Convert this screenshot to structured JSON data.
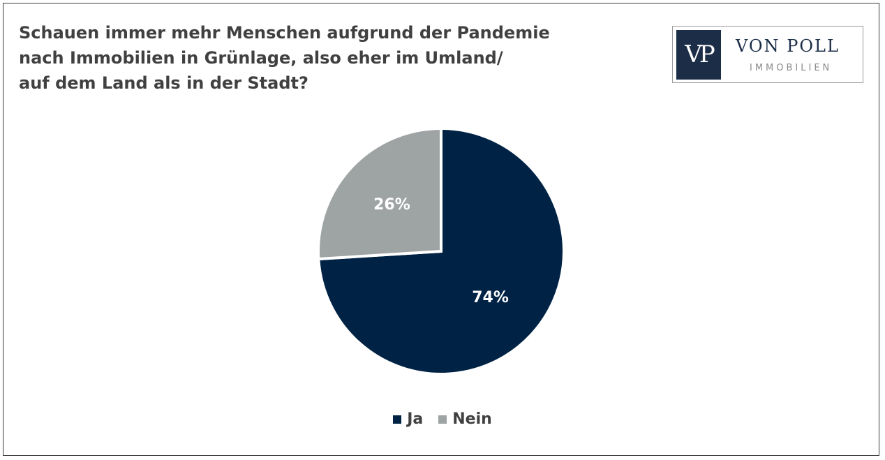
{
  "title_lines": [
    "Schauen immer mehr Menschen aufgrund der Pandemie",
    "nach Immobilien in Grünlage, also eher im Umland/",
    "auf dem Land als in der Stadt?"
  ],
  "logo": {
    "mark": "VP",
    "name": "VON POLL",
    "sub": "IMMOBILIEN",
    "colors": {
      "mark_bg": "#1c2d48",
      "name": "#1c2d48"
    }
  },
  "chart_data": {
    "type": "pie",
    "title": "Schauen immer mehr Menschen aufgrund der Pandemie nach Immobilien in Grünlage, also eher im Umland/ auf dem Land als in der Stadt?",
    "series": [
      {
        "categories": [
          "Ja",
          "Nein"
        ],
        "values": [
          74,
          26
        ],
        "labels": [
          "74%",
          "26%"
        ],
        "colors": [
          "#002345",
          "#9ea3a4"
        ]
      }
    ],
    "legend": {
      "placement": "bottom",
      "entries": [
        "Ja",
        "Nein"
      ]
    }
  }
}
